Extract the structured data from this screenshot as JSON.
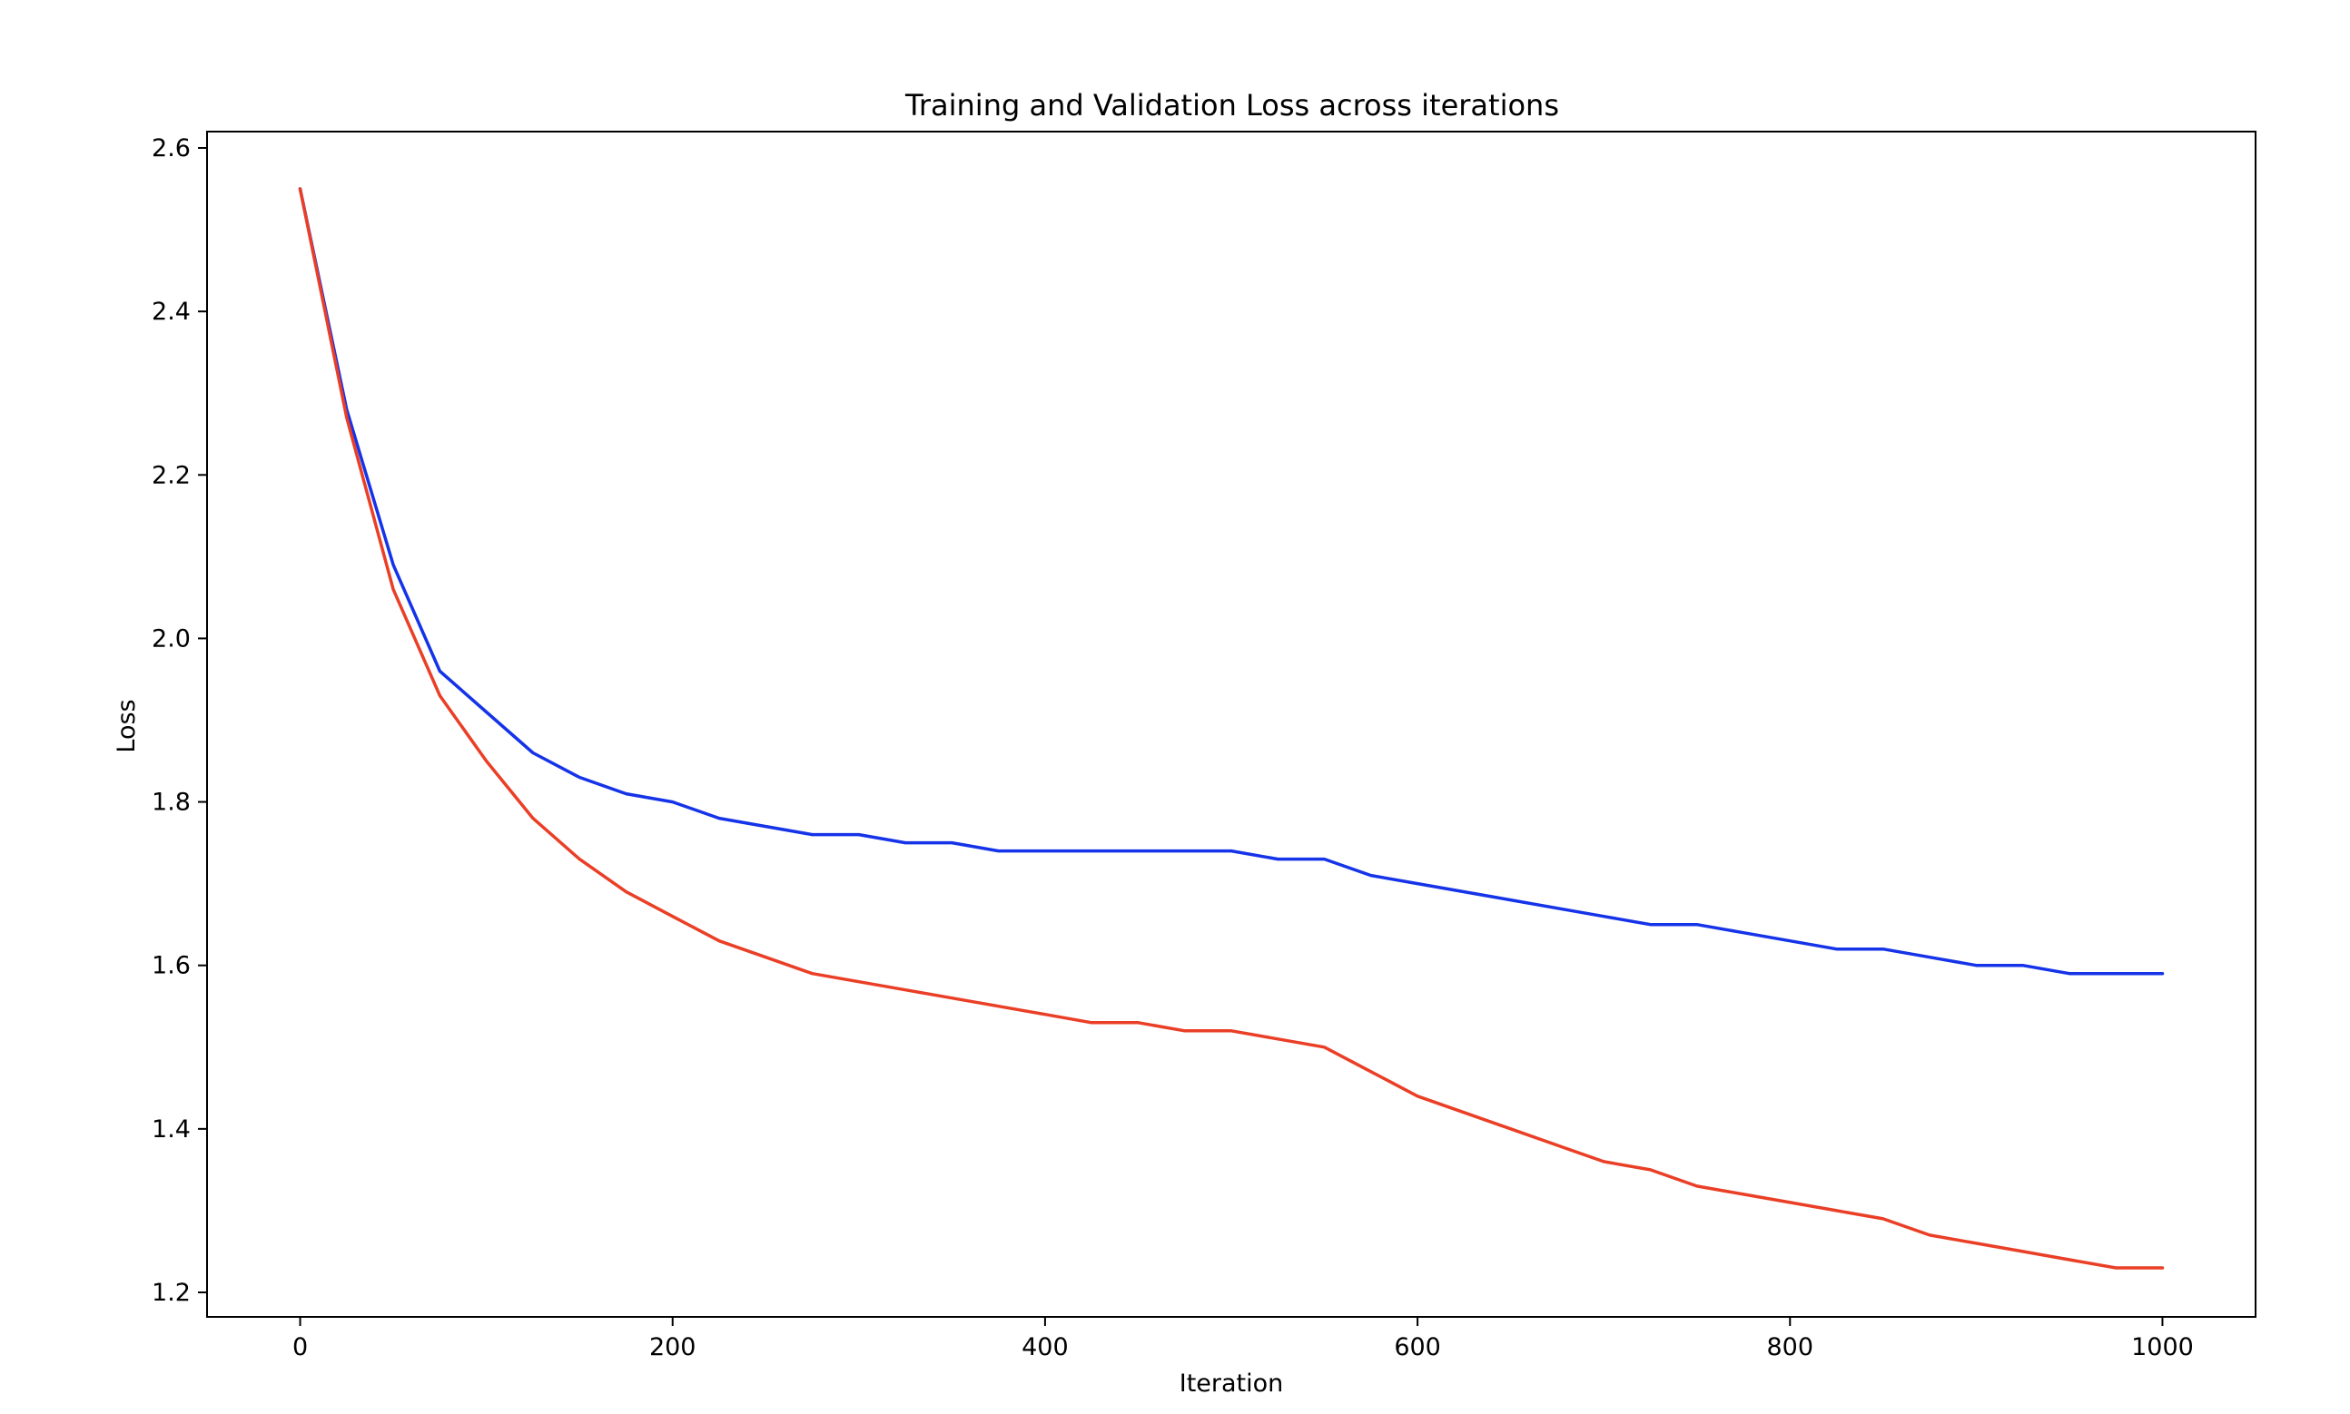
{
  "chart_data": {
    "type": "line",
    "title": "Training and Validation Loss across iterations",
    "xlabel": "Iteration",
    "ylabel": "Loss",
    "xlim": [
      -50,
      1050
    ],
    "ylim": [
      1.17,
      2.62
    ],
    "xticks": [
      0,
      200,
      400,
      600,
      800,
      1000
    ],
    "xtick_labels": [
      "0",
      "200",
      "400",
      "600",
      "800",
      "1000"
    ],
    "yticks": [
      1.2,
      1.4,
      1.6,
      1.8,
      2.0,
      2.2,
      2.4,
      2.6
    ],
    "ytick_labels": [
      "1.2",
      "1.4",
      "1.6",
      "1.8",
      "2.0",
      "2.2",
      "2.4",
      "2.6"
    ],
    "grid": false,
    "legend": "none",
    "x": [
      0,
      25,
      50,
      75,
      100,
      125,
      150,
      175,
      200,
      225,
      250,
      275,
      300,
      325,
      350,
      375,
      400,
      425,
      450,
      475,
      500,
      525,
      550,
      575,
      600,
      625,
      650,
      675,
      700,
      725,
      750,
      775,
      800,
      825,
      850,
      875,
      900,
      925,
      950,
      975,
      1000
    ],
    "series": [
      {
        "color": "#1533e8",
        "values": [
          2.55,
          2.28,
          2.09,
          1.96,
          1.91,
          1.86,
          1.83,
          1.81,
          1.8,
          1.78,
          1.77,
          1.76,
          1.76,
          1.75,
          1.75,
          1.74,
          1.74,
          1.74,
          1.74,
          1.74,
          1.74,
          1.73,
          1.73,
          1.71,
          1.7,
          1.69,
          1.68,
          1.67,
          1.66,
          1.65,
          1.65,
          1.64,
          1.63,
          1.62,
          1.62,
          1.61,
          1.6,
          1.6,
          1.59,
          1.59,
          1.59
        ]
      },
      {
        "color": "#ea3f26",
        "values": [
          2.55,
          2.27,
          2.06,
          1.93,
          1.85,
          1.78,
          1.73,
          1.69,
          1.66,
          1.63,
          1.61,
          1.59,
          1.58,
          1.57,
          1.56,
          1.55,
          1.54,
          1.53,
          1.53,
          1.52,
          1.52,
          1.51,
          1.5,
          1.47,
          1.44,
          1.42,
          1.4,
          1.38,
          1.36,
          1.35,
          1.33,
          1.32,
          1.31,
          1.3,
          1.29,
          1.27,
          1.26,
          1.25,
          1.24,
          1.23,
          1.23
        ]
      }
    ]
  }
}
